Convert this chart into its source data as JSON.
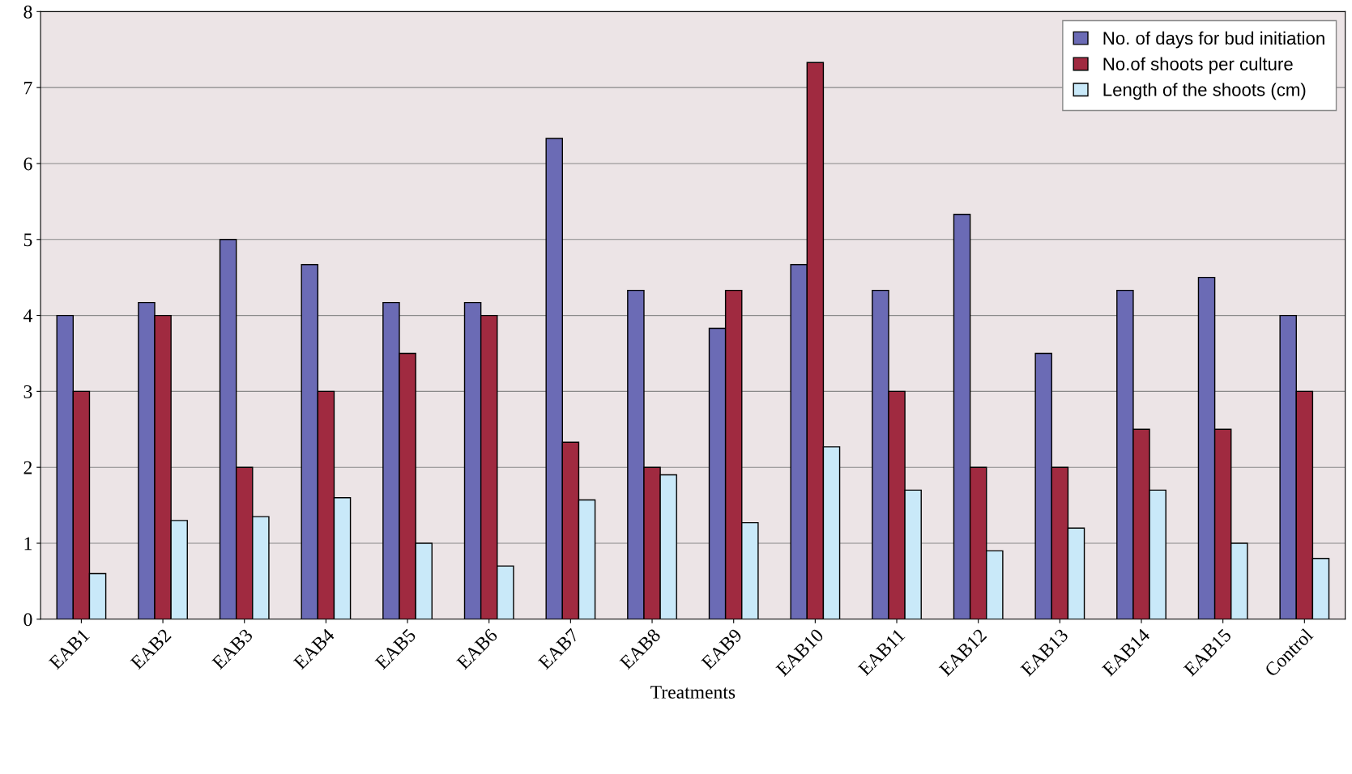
{
  "chart_data": {
    "type": "bar",
    "xlabel": "Treatments",
    "categories": [
      "EAB1",
      "EAB2",
      "EAB3",
      "EAB4",
      "EAB5",
      "EAB6",
      "EAB7",
      "EAB8",
      "EAB9",
      "EAB10",
      "EAB11",
      "EAB12",
      "EAB13",
      "EAB14",
      "EAB15",
      "Control"
    ],
    "series": [
      {
        "name": "No. of days for bud initiation",
        "color": "#6b6bb5",
        "values": [
          4.0,
          4.17,
          5.0,
          4.67,
          4.17,
          4.17,
          6.33,
          4.33,
          3.83,
          4.67,
          4.33,
          5.33,
          3.5,
          4.33,
          4.5,
          4.0
        ]
      },
      {
        "name": "No.of shoots per culture",
        "color": "#a02a40",
        "values": [
          3.0,
          4.0,
          2.0,
          3.0,
          3.5,
          4.0,
          2.33,
          2.0,
          4.33,
          7.33,
          3.0,
          2.0,
          2.0,
          2.5,
          2.5,
          3.0
        ]
      },
      {
        "name": "Length of the shoots (cm)",
        "color": "#c9e9f9",
        "values": [
          0.6,
          1.3,
          1.35,
          1.6,
          1.0,
          0.7,
          1.57,
          1.9,
          1.27,
          2.27,
          1.7,
          0.9,
          1.2,
          1.7,
          1.0,
          0.8
        ]
      }
    ],
    "ylim": [
      0,
      8
    ],
    "yticks": [
      0,
      1,
      2,
      3,
      4,
      5,
      6,
      7,
      8
    ],
    "grid": "y",
    "legend": "top right"
  }
}
